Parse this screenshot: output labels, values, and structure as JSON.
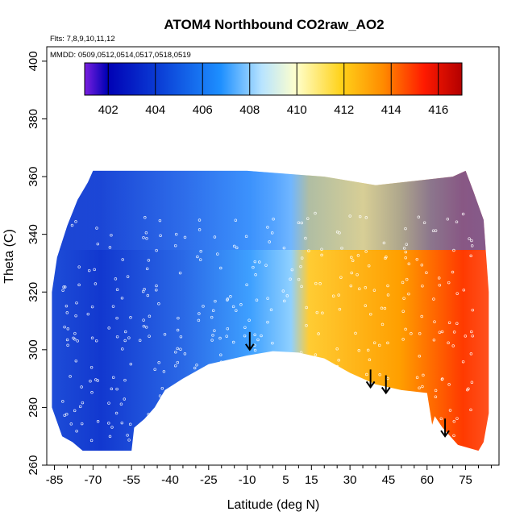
{
  "chart_data": {
    "type": "heatmap",
    "title": "ATOM4 Northbound CO2raw_AO2",
    "annotations": [
      "Flts: 7,8,9,10,11,12",
      "MMDD: 0509,0512,0514,0517,0518,0519"
    ],
    "xlabel": "Latitude (deg N)",
    "ylabel": "Theta (C)",
    "xlim": [
      -88,
      88
    ],
    "ylim": [
      260,
      405
    ],
    "xticks": [
      -85,
      -70,
      -55,
      -40,
      -25,
      -10,
      5,
      15,
      30,
      45,
      60,
      75
    ],
    "yticks": [
      260,
      280,
      300,
      320,
      340,
      360,
      380,
      400
    ],
    "colorbar": {
      "ticks": [
        402,
        404,
        406,
        408,
        410,
        412,
        414,
        416
      ],
      "range": [
        401,
        417
      ],
      "colors": [
        "#7a1fe0",
        "#0000b4",
        "#0b3fd6",
        "#1d8fff",
        "#b8e4ff",
        "#ffffcc",
        "#ffd21a",
        "#ff8c00",
        "#ff1a00",
        "#b30000"
      ]
    },
    "markers": [
      {
        "lat": -9,
        "theta": 300
      },
      {
        "lat": 38,
        "theta": 287
      },
      {
        "lat": 44,
        "theta": 285
      },
      {
        "lat": 67,
        "theta": 270
      }
    ],
    "field_regions": [
      {
        "lat_min": -88,
        "lat_max": -60,
        "value": 403.6
      },
      {
        "lat_min": -60,
        "lat_max": -30,
        "value": 404.8
      },
      {
        "lat_min": -30,
        "lat_max": -10,
        "value": 406.5
      },
      {
        "lat_min": -10,
        "lat_max": 5,
        "value": 407.8
      },
      {
        "lat_min": 5,
        "lat_max": 20,
        "value": 411.2
      },
      {
        "lat_min": 20,
        "lat_max": 55,
        "value": 412.3
      },
      {
        "lat_min": 55,
        "lat_max": 88,
        "value": 413.8
      }
    ]
  }
}
